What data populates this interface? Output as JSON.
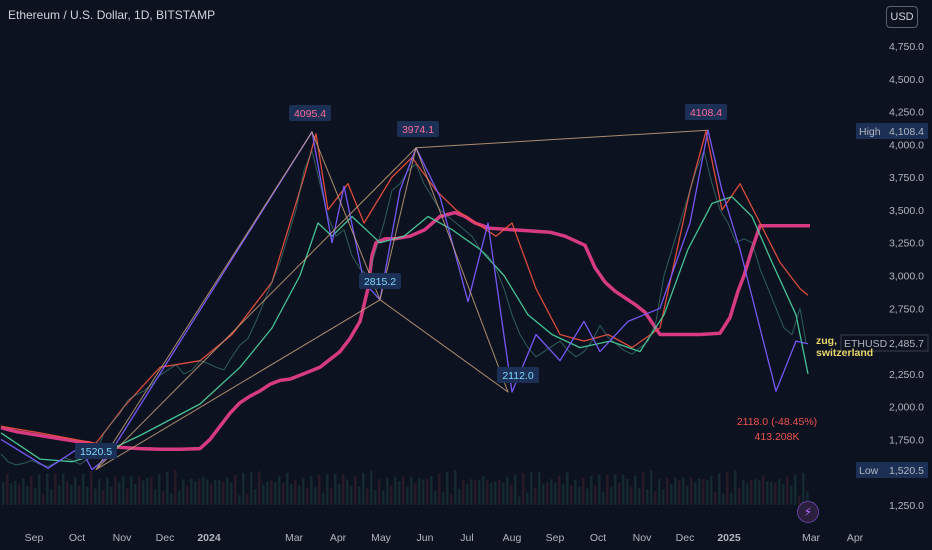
{
  "title": "Ethereum / U.S. Dollar, 1D, BITSTAMP",
  "currency_button": "USD",
  "colors": {
    "background": "#0d1221",
    "grid": "#1a2133",
    "up_candle": "#26a69a",
    "down_candle": "#ef5350",
    "support_line": "#d63a82",
    "zigzag_purple": "#7b5cff",
    "zigzag_red": "#f2513f",
    "zigzag_green": "#4bd6a0",
    "pattern_line": "#c9a27a",
    "label_box": "#1c3055",
    "label_text_pink": "#ff6b9a",
    "label_text_cyan": "#7fd9ff",
    "drop_text": "#ef5350"
  },
  "chart_data": {
    "type": "line",
    "title": "Ethereum / U.S. Dollar, 1D, BITSTAMP",
    "x_axis": {
      "tick_labels": [
        "Sep",
        "Oct",
        "Nov",
        "Dec",
        "2024",
        "Mar",
        "Apr",
        "May",
        "Jun",
        "Jul",
        "Aug",
        "Sep",
        "Oct",
        "Nov",
        "Dec",
        "2025",
        "Mar",
        "Apr"
      ]
    },
    "y_axis": {
      "tick_labels": [
        "4,750.0",
        "4,500.0",
        "4,250.0",
        "4,000.0",
        "3,750.0",
        "3,500.0",
        "3,250.0",
        "3,000.0",
        "2,750.0",
        "2,250.0",
        "2,000.0",
        "1,750.0",
        "1,250.0"
      ],
      "range": [
        1100,
        4950
      ]
    },
    "price_markers": [
      {
        "label": "High",
        "value": "4,108.4",
        "y": 4108.4
      },
      {
        "label": "ETHUSD",
        "value": "2,485.7",
        "y": 2485.7
      },
      {
        "label": "Low",
        "value": "1,520.5",
        "y": 1520.5
      }
    ],
    "grid": false,
    "pivots": [
      {
        "label": "1520.5",
        "month": "Oct",
        "y": 1520.5,
        "style": "cyan"
      },
      {
        "label": "4095.4",
        "month": "Mar",
        "y": 4095.4,
        "style": "pink"
      },
      {
        "label": "2815.2",
        "month": "May",
        "y": 2815.2,
        "style": "cyan"
      },
      {
        "label": "3974.1",
        "month": "Jun",
        "y": 3974.1,
        "style": "pink"
      },
      {
        "label": "2112.0",
        "month": "Aug",
        "y": 2112.0,
        "style": "cyan"
      },
      {
        "label": "4108.4",
        "month": "Dec",
        "y": 4108.4,
        "style": "pink"
      }
    ],
    "annotations": {
      "drop_text": "2118.0 (-48.45%)",
      "drop_volume": "413.208K",
      "location_text_1": "zug,",
      "location_text_2": "switzerland"
    },
    "series": [
      {
        "style": "price",
        "points": [
          [
            1,
            1640
          ],
          [
            8,
            1580
          ],
          [
            16,
            1555
          ],
          [
            25,
            1570
          ],
          [
            32,
            1590
          ],
          [
            40,
            1560
          ],
          [
            48,
            1545
          ],
          [
            56,
            1575
          ],
          [
            64,
            1610
          ],
          [
            72,
            1590
          ],
          [
            80,
            1560
          ],
          [
            88,
            1600
          ],
          [
            96,
            1640
          ],
          [
            104,
            1800
          ],
          [
            112,
            1880
          ],
          [
            120,
            1950
          ],
          [
            128,
            2050
          ],
          [
            136,
            2090
          ],
          [
            144,
            2120
          ],
          [
            152,
            2170
          ],
          [
            160,
            2240
          ],
          [
            168,
            2280
          ],
          [
            176,
            2320
          ],
          [
            184,
            2250
          ],
          [
            192,
            2280
          ],
          [
            200,
            2350
          ],
          [
            208,
            2330
          ],
          [
            216,
            2300
          ],
          [
            224,
            2280
          ],
          [
            232,
            2380
          ],
          [
            240,
            2470
          ],
          [
            248,
            2520
          ],
          [
            256,
            2650
          ],
          [
            264,
            2800
          ],
          [
            272,
            2950
          ],
          [
            280,
            3100
          ],
          [
            288,
            3300
          ],
          [
            296,
            3500
          ],
          [
            304,
            3800
          ],
          [
            312,
            3950
          ],
          [
            320,
            3700
          ],
          [
            328,
            3450
          ],
          [
            336,
            3300
          ],
          [
            344,
            3350
          ],
          [
            352,
            3150
          ],
          [
            360,
            3050
          ],
          [
            368,
            3000
          ],
          [
            376,
            3200
          ],
          [
            384,
            3400
          ],
          [
            392,
            3650
          ],
          [
            400,
            3700
          ],
          [
            408,
            3800
          ],
          [
            416,
            3850
          ],
          [
            424,
            3700
          ],
          [
            432,
            3600
          ],
          [
            440,
            3500
          ],
          [
            448,
            3450
          ],
          [
            456,
            3400
          ],
          [
            464,
            3350
          ],
          [
            472,
            3300
          ],
          [
            480,
            3200
          ],
          [
            488,
            3150
          ],
          [
            496,
            3050
          ],
          [
            504,
            2900
          ],
          [
            512,
            2700
          ],
          [
            520,
            2550
          ],
          [
            528,
            2450
          ],
          [
            536,
            2380
          ],
          [
            544,
            2420
          ],
          [
            552,
            2460
          ],
          [
            560,
            2500
          ],
          [
            568,
            2430
          ],
          [
            576,
            2380
          ],
          [
            584,
            2420
          ],
          [
            592,
            2500
          ],
          [
            600,
            2620
          ],
          [
            608,
            2530
          ],
          [
            616,
            2480
          ],
          [
            624,
            2430
          ],
          [
            632,
            2400
          ],
          [
            640,
            2450
          ],
          [
            648,
            2500
          ],
          [
            656,
            2650
          ],
          [
            664,
            3000
          ],
          [
            672,
            3200
          ],
          [
            680,
            3400
          ],
          [
            688,
            3600
          ],
          [
            696,
            3800
          ],
          [
            704,
            3950
          ],
          [
            712,
            3700
          ],
          [
            720,
            3500
          ],
          [
            728,
            3400
          ],
          [
            736,
            3250
          ],
          [
            744,
            3280
          ],
          [
            752,
            3250
          ],
          [
            760,
            3050
          ],
          [
            768,
            2900
          ],
          [
            776,
            2750
          ],
          [
            784,
            2600
          ],
          [
            792,
            2550
          ],
          [
            800,
            2750
          ],
          [
            806,
            2490
          ]
        ]
      },
      {
        "style": "support",
        "points": [
          [
            1,
            1840
          ],
          [
            8,
            1825
          ],
          [
            16,
            1810
          ],
          [
            24,
            1800
          ],
          [
            32,
            1790
          ],
          [
            40,
            1780
          ],
          [
            48,
            1770
          ],
          [
            56,
            1760
          ],
          [
            64,
            1750
          ],
          [
            72,
            1740
          ],
          [
            80,
            1730
          ],
          [
            88,
            1725
          ],
          [
            96,
            1710
          ],
          [
            104,
            1700
          ],
          [
            120,
            1690
          ],
          [
            140,
            1680
          ],
          [
            160,
            1675
          ],
          [
            180,
            1675
          ],
          [
            200,
            1680
          ],
          [
            210,
            1750
          ],
          [
            220,
            1850
          ],
          [
            230,
            1950
          ],
          [
            240,
            2030
          ],
          [
            250,
            2080
          ],
          [
            260,
            2120
          ],
          [
            270,
            2170
          ],
          [
            280,
            2200
          ],
          [
            290,
            2210
          ],
          [
            300,
            2240
          ],
          [
            310,
            2270
          ],
          [
            320,
            2300
          ],
          [
            330,
            2360
          ],
          [
            340,
            2420
          ],
          [
            350,
            2520
          ],
          [
            360,
            2650
          ],
          [
            368,
            2900
          ],
          [
            372,
            3150
          ],
          [
            376,
            3250
          ],
          [
            385,
            3280
          ],
          [
            395,
            3280
          ],
          [
            410,
            3300
          ],
          [
            425,
            3350
          ],
          [
            440,
            3450
          ],
          [
            455,
            3480
          ],
          [
            465,
            3450
          ],
          [
            475,
            3400
          ],
          [
            490,
            3360
          ],
          [
            510,
            3350
          ],
          [
            530,
            3340
          ],
          [
            550,
            3330
          ],
          [
            565,
            3300
          ],
          [
            585,
            3230
          ],
          [
            595,
            3060
          ],
          [
            605,
            2950
          ],
          [
            615,
            2880
          ],
          [
            625,
            2830
          ],
          [
            635,
            2780
          ],
          [
            645,
            2720
          ],
          [
            660,
            2550
          ],
          [
            680,
            2550
          ],
          [
            700,
            2550
          ],
          [
            720,
            2560
          ],
          [
            730,
            2680
          ],
          [
            738,
            2880
          ],
          [
            744,
            3000
          ],
          [
            752,
            3200
          ],
          [
            760,
            3380
          ],
          [
            770,
            3380
          ],
          [
            790,
            3380
          ],
          [
            810,
            3380
          ]
        ]
      },
      {
        "style": "upper",
        "points": [
          [
            1,
            1850
          ],
          [
            40,
            1800
          ],
          [
            96,
            1720
          ],
          [
            124,
            2000
          ],
          [
            160,
            2300
          ],
          [
            200,
            2350
          ],
          [
            232,
            2550
          ],
          [
            272,
            2950
          ],
          [
            304,
            3750
          ],
          [
            316,
            4080
          ],
          [
            328,
            3500
          ],
          [
            348,
            3700
          ],
          [
            364,
            3400
          ],
          [
            392,
            3750
          ],
          [
            412,
            3900
          ],
          [
            436,
            3650
          ],
          [
            456,
            3500
          ],
          [
            476,
            3400
          ],
          [
            496,
            3300
          ],
          [
            512,
            3400
          ],
          [
            536,
            2900
          ],
          [
            560,
            2550
          ],
          [
            584,
            2500
          ],
          [
            608,
            2550
          ],
          [
            632,
            2450
          ],
          [
            660,
            2600
          ],
          [
            690,
            3650
          ],
          [
            706,
            4100
          ],
          [
            722,
            3500
          ],
          [
            740,
            3700
          ],
          [
            760,
            3400
          ],
          [
            780,
            3100
          ],
          [
            800,
            2900
          ],
          [
            808,
            2850
          ]
        ]
      },
      {
        "style": "lower",
        "points": [
          [
            1,
            1800
          ],
          [
            40,
            1600
          ],
          [
            72,
            1580
          ],
          [
            104,
            1650
          ],
          [
            140,
            1780
          ],
          [
            200,
            2020
          ],
          [
            240,
            2300
          ],
          [
            272,
            2600
          ],
          [
            300,
            3000
          ],
          [
            318,
            3400
          ],
          [
            332,
            3300
          ],
          [
            352,
            3450
          ],
          [
            380,
            3250
          ],
          [
            404,
            3300
          ],
          [
            428,
            3450
          ],
          [
            452,
            3350
          ],
          [
            480,
            3200
          ],
          [
            504,
            3000
          ],
          [
            528,
            2700
          ],
          [
            552,
            2550
          ],
          [
            580,
            2450
          ],
          [
            610,
            2500
          ],
          [
            640,
            2420
          ],
          [
            664,
            2700
          ],
          [
            688,
            3200
          ],
          [
            712,
            3550
          ],
          [
            732,
            3600
          ],
          [
            752,
            3450
          ],
          [
            772,
            3100
          ],
          [
            796,
            2700
          ],
          [
            808,
            2250
          ]
        ]
      },
      {
        "style": "zigzag",
        "points": [
          [
            1,
            1750
          ],
          [
            48,
            1530
          ],
          [
            80,
            1690
          ],
          [
            92,
            1520
          ],
          [
            108,
            1620
          ],
          [
            312,
            4095
          ],
          [
            332,
            3250
          ],
          [
            344,
            3680
          ],
          [
            364,
            2950
          ],
          [
            380,
            2815
          ],
          [
            400,
            3650
          ],
          [
            416,
            3974
          ],
          [
            440,
            3600
          ],
          [
            468,
            2800
          ],
          [
            488,
            3400
          ],
          [
            512,
            2112
          ],
          [
            536,
            2550
          ],
          [
            560,
            2350
          ],
          [
            584,
            2650
          ],
          [
            600,
            2420
          ],
          [
            628,
            2650
          ],
          [
            660,
            2750
          ],
          [
            690,
            3400
          ],
          [
            708,
            4108
          ],
          [
            722,
            3650
          ],
          [
            740,
            3200
          ],
          [
            776,
            2118
          ],
          [
            796,
            2500
          ],
          [
            808,
            2480
          ]
        ]
      },
      {
        "style": "pattern",
        "points": [
          [
            96,
            1520
          ],
          [
            312,
            4095
          ],
          [
            380,
            2815
          ],
          [
            416,
            3974
          ],
          [
            508,
            2112
          ],
          [
            380,
            2815
          ],
          [
            96,
            1520
          ],
          [
            416,
            3974
          ],
          [
            708,
            4108
          ]
        ]
      }
    ]
  }
}
